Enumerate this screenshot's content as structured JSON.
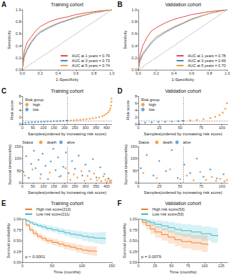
{
  "chart_data": [
    {
      "panel": "A",
      "type": "line",
      "title": "Training cohort",
      "x_label": "1-Specificity",
      "y_label": "Sensitivity",
      "xlim": [
        0,
        1
      ],
      "ylim": [
        0,
        1
      ],
      "xticks": [
        {
          "value": 0,
          "label": "0.0"
        },
        0.2,
        0.4,
        0.6,
        0.8,
        {
          "value": 1,
          "label": "1.0"
        }
      ],
      "yticks": [
        {
          "value": 0,
          "label": "0.0"
        },
        0.2,
        0.4,
        0.6,
        0.8,
        {
          "value": 1,
          "label": "1.0"
        }
      ],
      "grid": false,
      "legend": "lower right",
      "series": [
        {
          "name": "AUC at 1 years = 0.79",
          "color": "#e8424a",
          "x": [
            0,
            0.02,
            0.05,
            0.1,
            0.15,
            0.2,
            0.3,
            0.4,
            0.5,
            0.6,
            0.8,
            1
          ],
          "values": [
            0,
            0.3,
            0.45,
            0.55,
            0.65,
            0.72,
            0.8,
            0.85,
            0.88,
            0.92,
            0.97,
            1
          ]
        },
        {
          "name": "AUC at 3 years = 0.73",
          "color": "#3f7fd9",
          "x": [
            0,
            0.02,
            0.05,
            0.1,
            0.15,
            0.2,
            0.3,
            0.4,
            0.5,
            0.6,
            0.8,
            1
          ],
          "values": [
            0,
            0.2,
            0.32,
            0.45,
            0.55,
            0.62,
            0.7,
            0.77,
            0.82,
            0.87,
            0.95,
            1
          ]
        },
        {
          "name": "AUC at 5 years = 0.74",
          "color": "#e3a23b",
          "x": [
            0,
            0.02,
            0.05,
            0.1,
            0.15,
            0.2,
            0.3,
            0.4,
            0.5,
            0.6,
            0.8,
            1
          ],
          "values": [
            0,
            0.22,
            0.35,
            0.47,
            0.57,
            0.64,
            0.72,
            0.78,
            0.83,
            0.88,
            0.95,
            1
          ]
        }
      ]
    },
    {
      "panel": "B",
      "type": "line",
      "title": "Validation cohort",
      "x_label": "1-Specificity",
      "y_label": "Sensitivity",
      "xlim": [
        0,
        1
      ],
      "ylim": [
        0,
        1
      ],
      "xticks": [
        {
          "value": 0,
          "label": "0.0"
        },
        0.2,
        0.4,
        0.6,
        0.8,
        {
          "value": 1,
          "label": "1.0"
        }
      ],
      "yticks": [
        {
          "value": 0,
          "label": "0.0"
        },
        0.2,
        0.4,
        0.6,
        0.8,
        {
          "value": 1,
          "label": "1.0"
        }
      ],
      "grid": false,
      "legend": "lower right",
      "series": [
        {
          "name": "AUC at 1 years = 0.78",
          "color": "#e8424a",
          "x": [
            0,
            0.02,
            0.05,
            0.1,
            0.15,
            0.2,
            0.3,
            0.4,
            0.5,
            0.6,
            0.8,
            1
          ],
          "values": [
            0,
            0.25,
            0.4,
            0.55,
            0.65,
            0.7,
            0.78,
            0.84,
            0.88,
            0.92,
            0.97,
            1
          ]
        },
        {
          "name": "AUC at 3 years = 0.69",
          "color": "#3f7fd9",
          "x": [
            0,
            0.02,
            0.05,
            0.1,
            0.15,
            0.2,
            0.3,
            0.4,
            0.5,
            0.6,
            0.8,
            1
          ],
          "values": [
            0,
            0.15,
            0.25,
            0.35,
            0.45,
            0.52,
            0.62,
            0.7,
            0.77,
            0.84,
            0.94,
            1
          ]
        },
        {
          "name": "AUC at 5 years = 0.70",
          "color": "#e3a23b",
          "x": [
            0,
            0.02,
            0.05,
            0.1,
            0.15,
            0.2,
            0.3,
            0.4,
            0.5,
            0.6,
            0.8,
            1
          ],
          "values": [
            0,
            0.18,
            0.28,
            0.38,
            0.47,
            0.55,
            0.64,
            0.72,
            0.78,
            0.85,
            0.94,
            1
          ]
        }
      ]
    },
    {
      "panel": "C",
      "type": "scatter",
      "title": "Training cohort",
      "x_label": "Samples(ordered by increasing risk score)",
      "y_label": "Risk score",
      "xlim": [
        0,
        425
      ],
      "ylim": [
        0,
        8
      ],
      "xticks": [
        0,
        50,
        100,
        150,
        200,
        250,
        300,
        350,
        400
      ],
      "yticks": [
        0,
        2,
        4,
        6,
        8
      ],
      "grid": false,
      "legend": "upper left",
      "legend_title": "Risk group",
      "cutoff_x": 212,
      "cutoff_y": 1.0,
      "series": [
        {
          "name": "high",
          "color": "#f28b1e",
          "x": [
            215,
            230,
            245,
            260,
            275,
            290,
            305,
            320,
            335,
            350,
            365,
            380,
            390,
            400,
            408,
            414,
            418,
            421,
            423,
            424
          ],
          "values": [
            1.02,
            1.08,
            1.14,
            1.2,
            1.27,
            1.35,
            1.45,
            1.56,
            1.7,
            1.86,
            2.05,
            2.3,
            2.6,
            2.95,
            3.4,
            3.9,
            4.5,
            5.3,
            6.4,
            7.3
          ]
        },
        {
          "name": "low",
          "color": "#3b8ed0",
          "x": [
            1,
            15,
            30,
            45,
            60,
            75,
            90,
            105,
            120,
            135,
            150,
            165,
            180,
            195,
            210
          ],
          "values": [
            0.2,
            0.35,
            0.45,
            0.52,
            0.58,
            0.63,
            0.68,
            0.72,
            0.76,
            0.8,
            0.84,
            0.88,
            0.92,
            0.96,
            1.0
          ]
        }
      ]
    },
    {
      "type": "scatter",
      "x_label": "Samples(ordered by increasing risk score)",
      "y_label": "Survival time(months)",
      "xlim": [
        0,
        425
      ],
      "ylim": [
        0,
        150
      ],
      "xticks": [
        0,
        50,
        100,
        150,
        200,
        250,
        300,
        350,
        400
      ],
      "yticks": [
        0,
        50,
        100,
        150
      ],
      "grid": false,
      "legend": "top",
      "legend_title": "Status",
      "cutoff_x": 212,
      "series": [
        {
          "name": "death",
          "color": "#f28b1e",
          "x": [
            12,
            48,
            85,
            130,
            175,
            205,
            228,
            245,
            262,
            280,
            295,
            310,
            325,
            340,
            355,
            365,
            375,
            385,
            395,
            402,
            408,
            414,
            419,
            423
          ],
          "values": [
            30,
            55,
            18,
            42,
            25,
            60,
            12,
            35,
            22,
            48,
            8,
            28,
            15,
            38,
            10,
            20,
            6,
            26,
            12,
            4,
            16,
            8,
            3,
            10
          ]
        },
        {
          "name": "alive",
          "color": "#3b8ed0",
          "x": [
            5,
            18,
            30,
            42,
            55,
            63,
            77,
            88,
            96,
            110,
            122,
            135,
            147,
            158,
            170,
            183,
            195,
            207,
            220,
            236,
            250,
            268,
            285,
            300,
            318,
            335,
            352,
            370,
            390,
            410
          ],
          "values": [
            45,
            110,
            20,
            78,
            132,
            60,
            95,
            35,
            120,
            70,
            15,
            88,
            140,
            52,
            105,
            28,
            66,
            125,
            40,
            90,
            58,
            112,
            30,
            75,
            48,
            98,
            22,
            64,
            36,
            18
          ]
        }
      ]
    },
    {
      "panel": "D",
      "type": "scatter",
      "title": "Validation cohort",
      "x_label": "Samples(ordered by increasing risk score)",
      "y_label": "Risk score",
      "xlim": [
        0,
        107
      ],
      "ylim": [
        0,
        8
      ],
      "xticks": [
        0,
        25,
        50,
        75,
        100
      ],
      "yticks": [
        0,
        2,
        4,
        6,
        8
      ],
      "grid": false,
      "legend": "upper left",
      "legend_title": "Risk group",
      "cutoff_x": 53.5,
      "cutoff_y": 0.97,
      "series": [
        {
          "name": "high",
          "color": "#f28b1e",
          "x": [
            54,
            62,
            70,
            78,
            86,
            92,
            97,
            101,
            104,
            106
          ],
          "values": [
            1.0,
            1.1,
            1.25,
            1.45,
            1.75,
            2.1,
            2.6,
            3.3,
            4.4,
            6.0
          ]
        },
        {
          "name": "low",
          "color": "#3b8ed0",
          "x": [
            1,
            8,
            16,
            24,
            32,
            40,
            48,
            53
          ],
          "values": [
            0.25,
            0.4,
            0.5,
            0.6,
            0.68,
            0.76,
            0.85,
            0.95
          ]
        }
      ]
    },
    {
      "type": "scatter",
      "x_label": "Samples(ordered by increasing risk score)",
      "y_label": "Survival time(months)",
      "xlim": [
        0,
        107
      ],
      "ylim": [
        0,
        150
      ],
      "xticks": [
        0,
        25,
        50,
        75,
        100
      ],
      "yticks": [
        0,
        50,
        100,
        150
      ],
      "grid": false,
      "legend": "top",
      "legend_title": "Status",
      "cutoff_x": 53.5,
      "series": [
        {
          "name": "death",
          "color": "#f28b1e",
          "x": [
            6,
            22,
            38,
            50,
            58,
            66,
            74,
            81,
            88,
            93,
            98,
            103,
            106
          ],
          "values": [
            40,
            20,
            55,
            15,
            30,
            10,
            45,
            12,
            24,
            8,
            16,
            6,
            11
          ]
        },
        {
          "name": "alive",
          "color": "#3b8ed0",
          "x": [
            3,
            10,
            18,
            25,
            33,
            40,
            47,
            55,
            62,
            70,
            78,
            86,
            94,
            102
          ],
          "values": [
            60,
            115,
            30,
            90,
            48,
            135,
            20,
            75,
            40,
            100,
            25,
            55,
            18,
            35
          ]
        }
      ]
    },
    {
      "panel": "E",
      "type": "step",
      "title": "Training cohort",
      "x_label": "Time (months)",
      "y_label": "Survival probability",
      "xlim": [
        0,
        150
      ],
      "ylim": [
        0,
        1
      ],
      "xticks": [
        0,
        50,
        100,
        150
      ],
      "yticks": [
        {
          "value": 0,
          "label": "0.00"
        },
        {
          "value": 0.25,
          "label": "0.25"
        },
        {
          "value": 0.5,
          "label": "0.50"
        },
        {
          "value": 0.75,
          "label": "0.75"
        },
        {
          "value": 1,
          "label": "1.00"
        }
      ],
      "grid": false,
      "legend": "top",
      "annotation": "p < 0.0001",
      "series": [
        {
          "name": "High risk score(213)",
          "color": "#f07e26",
          "x": [
            0,
            6,
            12,
            18,
            25,
            32,
            40,
            50,
            60,
            70,
            80,
            90,
            100,
            110,
            120,
            125
          ],
          "values": [
            1,
            0.86,
            0.75,
            0.67,
            0.6,
            0.55,
            0.5,
            0.46,
            0.42,
            0.38,
            0.35,
            0.31,
            0.28,
            0.26,
            0.25,
            0.25
          ],
          "ci_lower": [
            1,
            0.81,
            0.69,
            0.61,
            0.54,
            0.48,
            0.43,
            0.39,
            0.35,
            0.3,
            0.27,
            0.22,
            0.19,
            0.16,
            0.14,
            0.13
          ],
          "ci_upper": [
            1,
            0.9,
            0.81,
            0.74,
            0.67,
            0.62,
            0.57,
            0.54,
            0.5,
            0.46,
            0.44,
            0.41,
            0.38,
            0.37,
            0.37,
            0.37
          ]
        },
        {
          "name": "Low risk score(211)",
          "color": "#3db8c8",
          "x": [
            0,
            6,
            12,
            18,
            25,
            32,
            40,
            50,
            60,
            70,
            80,
            90,
            100,
            110,
            120,
            130,
            140
          ],
          "values": [
            1,
            0.96,
            0.92,
            0.88,
            0.85,
            0.82,
            0.78,
            0.75,
            0.72,
            0.68,
            0.65,
            0.63,
            0.6,
            0.58,
            0.56,
            0.55,
            0.55
          ],
          "ci_lower": [
            1,
            0.93,
            0.88,
            0.84,
            0.8,
            0.76,
            0.72,
            0.69,
            0.65,
            0.61,
            0.57,
            0.54,
            0.5,
            0.47,
            0.44,
            0.42,
            0.41
          ],
          "ci_upper": [
            1,
            0.99,
            0.96,
            0.93,
            0.9,
            0.88,
            0.85,
            0.82,
            0.79,
            0.76,
            0.74,
            0.72,
            0.7,
            0.69,
            0.69,
            0.7,
            0.71
          ]
        }
      ]
    },
    {
      "panel": "F",
      "type": "step",
      "title": "Validation cohort",
      "x_label": "Time (months)",
      "y_label": "Survival probability",
      "xlim": [
        0,
        135
      ],
      "ylim": [
        0,
        1
      ],
      "xticks": [
        0,
        25,
        50,
        75,
        100,
        125
      ],
      "yticks": [
        {
          "value": 0,
          "label": "0.00"
        },
        {
          "value": 0.25,
          "label": "0.25"
        },
        {
          "value": 0.5,
          "label": "0.50"
        },
        {
          "value": 0.75,
          "label": "0.75"
        },
        {
          "value": 1,
          "label": "1.00"
        }
      ],
      "grid": false,
      "legend": "top",
      "annotation": "p = 0.0079",
      "series": [
        {
          "name": "High risk score(53)",
          "color": "#f07e26",
          "x": [
            0,
            6,
            12,
            18,
            25,
            35,
            45,
            55,
            65,
            80,
            95,
            105
          ],
          "values": [
            1,
            0.92,
            0.85,
            0.77,
            0.7,
            0.64,
            0.58,
            0.52,
            0.48,
            0.45,
            0.42,
            0.4
          ],
          "ci_lower": [
            1,
            0.85,
            0.75,
            0.65,
            0.57,
            0.5,
            0.43,
            0.37,
            0.32,
            0.28,
            0.24,
            0.21
          ],
          "ci_upper": [
            1,
            0.99,
            0.95,
            0.9,
            0.84,
            0.79,
            0.74,
            0.69,
            0.66,
            0.63,
            0.62,
            0.61
          ]
        },
        {
          "name": "Low risk score(53)",
          "color": "#3db8c8",
          "x": [
            0,
            6,
            12,
            18,
            25,
            35,
            45,
            55,
            65,
            80,
            95,
            110,
            120
          ],
          "values": [
            1,
            0.98,
            0.95,
            0.92,
            0.88,
            0.84,
            0.8,
            0.76,
            0.73,
            0.7,
            0.66,
            0.62,
            0.6
          ],
          "ci_lower": [
            1,
            0.94,
            0.89,
            0.84,
            0.79,
            0.73,
            0.68,
            0.63,
            0.59,
            0.55,
            0.5,
            0.45,
            0.42
          ],
          "ci_upper": [
            1,
            1,
            1,
            0.99,
            0.97,
            0.95,
            0.93,
            0.9,
            0.88,
            0.86,
            0.83,
            0.8,
            0.79
          ]
        }
      ]
    }
  ]
}
